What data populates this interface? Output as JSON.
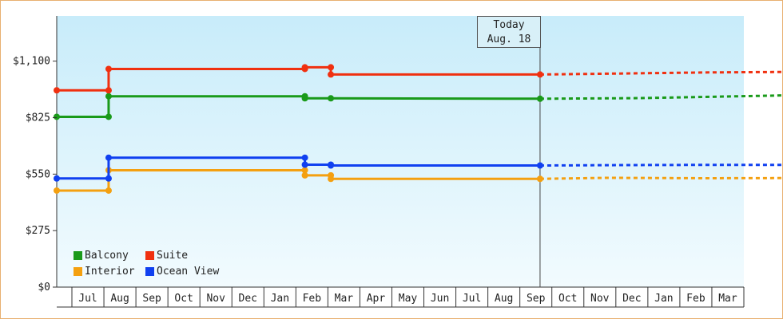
{
  "chart_data": {
    "type": "line",
    "step": true,
    "x_ticks": [
      "Jul",
      "Aug",
      "Sep",
      "Oct",
      "Nov",
      "Dec",
      "Jan",
      "Feb",
      "Mar",
      "Apr",
      "May",
      "Jun",
      "Jul",
      "Aug",
      "Sep",
      "Oct",
      "Nov",
      "Dec",
      "Jan",
      "Feb",
      "Mar"
    ],
    "y_ticks": [
      "$0",
      "$275",
      "$550",
      "$825",
      "$1,100"
    ],
    "ylim": [
      0,
      1320
    ],
    "grid": false,
    "legend_position": "bottom-left",
    "today": {
      "line1": "Today",
      "line2": "Aug. 18",
      "x": 14.9
    },
    "series": [
      {
        "name": "Balcony",
        "color": "#1a9a1a",
        "points": [
          [
            0,
            829
          ],
          [
            1.6,
            829
          ],
          [
            1.6,
            929
          ],
          [
            7.65,
            929
          ],
          [
            7.65,
            919
          ],
          [
            8.45,
            919
          ],
          [
            14.9,
            917
          ]
        ],
        "projection": [
          [
            14.9,
            917
          ],
          [
            18,
            920
          ],
          [
            22,
            932
          ],
          [
            23,
            935
          ]
        ]
      },
      {
        "name": "Suite",
        "color": "#f03010",
        "points": [
          [
            0,
            958
          ],
          [
            1.6,
            958
          ],
          [
            1.6,
            1062
          ],
          [
            7.65,
            1062
          ],
          [
            7.65,
            1070
          ],
          [
            8.45,
            1070
          ],
          [
            8.45,
            1035
          ],
          [
            14.9,
            1035
          ]
        ],
        "projection": [
          [
            14.9,
            1035
          ],
          [
            17.5,
            1040
          ],
          [
            20,
            1045
          ],
          [
            23,
            1048
          ]
        ]
      },
      {
        "name": "Interior",
        "color": "#f4a010",
        "points": [
          [
            0,
            470
          ],
          [
            1.6,
            470
          ],
          [
            1.6,
            569
          ],
          [
            7.65,
            569
          ],
          [
            7.65,
            544
          ],
          [
            8.45,
            544
          ],
          [
            8.45,
            527
          ],
          [
            14.9,
            527
          ]
        ],
        "projection": [
          [
            14.9,
            527
          ],
          [
            17,
            532
          ],
          [
            20,
            530
          ],
          [
            23,
            531
          ]
        ]
      },
      {
        "name": "Ocean View",
        "color": "#1040f0",
        "points": [
          [
            0,
            529
          ],
          [
            1.6,
            529
          ],
          [
            1.6,
            630
          ],
          [
            7.65,
            630
          ],
          [
            7.65,
            596
          ],
          [
            8.45,
            596
          ],
          [
            8.45,
            592
          ],
          [
            14.9,
            592
          ]
        ],
        "projection": [
          [
            14.9,
            592
          ],
          [
            17.5,
            594
          ],
          [
            20,
            595
          ],
          [
            23,
            595
          ]
        ]
      }
    ]
  }
}
